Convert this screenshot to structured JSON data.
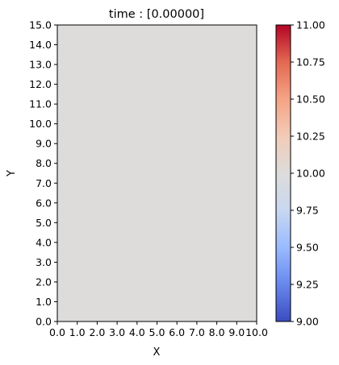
{
  "chart_data": {
    "type": "heatmap",
    "title": "time : [0.00000]",
    "xlabel": "X",
    "ylabel": "Y",
    "xlim": [
      0.0,
      10.0
    ],
    "ylim": [
      0.0,
      15.0
    ],
    "x_ticks": [
      "0.0",
      "1.0",
      "2.0",
      "3.0",
      "4.0",
      "5.0",
      "6.0",
      "7.0",
      "8.0",
      "9.0",
      "10.0"
    ],
    "y_ticks": [
      "0.0",
      "1.0",
      "2.0",
      "3.0",
      "4.0",
      "5.0",
      "6.0",
      "7.0",
      "8.0",
      "9.0",
      "10.0",
      "11.0",
      "12.0",
      "13.0",
      "14.0",
      "15.0"
    ],
    "field_value": 10.0,
    "field_color": "#dddcdb",
    "colorbar": {
      "colormap": "coolwarm",
      "range": [
        9.0,
        11.0
      ],
      "ticks": [
        "9.00",
        "9.25",
        "9.50",
        "9.75",
        "10.00",
        "10.25",
        "10.50",
        "10.75",
        "11.00"
      ],
      "stops": [
        "#3b4cc0",
        "#6788ee",
        "#9abbff",
        "#c9d7f0",
        "#dddcdb",
        "#f2cbb7",
        "#f6a385",
        "#e26952",
        "#b40426"
      ]
    }
  }
}
